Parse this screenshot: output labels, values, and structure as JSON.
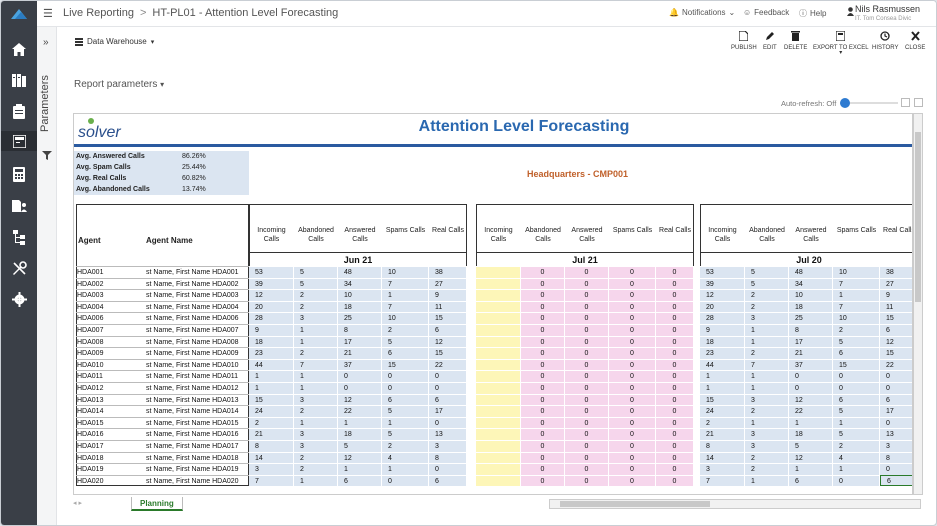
{
  "topbar": {
    "breadcrumb_root": "Live Reporting",
    "breadcrumb_page": "HT-PL01 - Attention Level Forecasting",
    "notifications": "Notifications",
    "feedback": "Feedback",
    "help": "Help",
    "user_name": "Nils Rasmussen",
    "user_sub": "IT. Tom Consea Divic"
  },
  "toolbar": {
    "datasource": "Data Warehouse",
    "publish": "PUBLISH",
    "edit": "EDIT",
    "delete": "DELETE",
    "export": "EXPORT TO EXCEL",
    "history": "HISTORY",
    "close": "CLOSE",
    "report_parameters": "Report parameters",
    "auto_refresh": "Auto-refresh: Off"
  },
  "params": {
    "label": "Parameters"
  },
  "report": {
    "logo": "solver",
    "title": "Attention Level Forecasting",
    "headquarters": "Headquarters - CMP001",
    "summary": [
      {
        "label": "Avg. Answered Calls",
        "value": "86.26%"
      },
      {
        "label": "Avg. Spam Calls",
        "value": "25.44%"
      },
      {
        "label": "Avg. Real Calls",
        "value": "60.82%"
      },
      {
        "label": "Avg. Abandoned Calls",
        "value": "13.74%"
      }
    ],
    "col_agent": "Agent",
    "col_agent_name": "Agent Name",
    "metric_headers": [
      "Incoming Calls",
      "Abandoned Calls",
      "Answered Calls",
      "Spams Calls",
      "Real Calls"
    ],
    "blocks": [
      {
        "date": "Jun 21",
        "kind": "data"
      },
      {
        "date": "Jul 21",
        "kind": "zero"
      },
      {
        "date": "Jul 20",
        "kind": "data"
      }
    ],
    "rows": [
      {
        "agent": "HDA001",
        "name": "st Name, First Name HDA001",
        "v": [
          "53",
          "5",
          "48",
          "10",
          "38"
        ]
      },
      {
        "agent": "HDA002",
        "name": "st Name, First Name HDA002",
        "v": [
          "39",
          "5",
          "34",
          "7",
          "27"
        ]
      },
      {
        "agent": "HDA003",
        "name": "st Name, First Name HDA003",
        "v": [
          "12",
          "2",
          "10",
          "1",
          "9"
        ]
      },
      {
        "agent": "HDA004",
        "name": "st Name, First Name HDA004",
        "v": [
          "20",
          "2",
          "18",
          "7",
          "11"
        ]
      },
      {
        "agent": "HDA006",
        "name": "st Name, First Name HDA006",
        "v": [
          "28",
          "3",
          "25",
          "10",
          "15"
        ]
      },
      {
        "agent": "HDA007",
        "name": "st Name, First Name HDA007",
        "v": [
          "9",
          "1",
          "8",
          "2",
          "6"
        ]
      },
      {
        "agent": "HDA008",
        "name": "st Name, First Name HDA008",
        "v": [
          "18",
          "1",
          "17",
          "5",
          "12"
        ]
      },
      {
        "agent": "HDA009",
        "name": "st Name, First Name HDA009",
        "v": [
          "23",
          "2",
          "21",
          "6",
          "15"
        ]
      },
      {
        "agent": "HDA010",
        "name": "st Name, First Name HDA010",
        "v": [
          "44",
          "7",
          "37",
          "15",
          "22"
        ]
      },
      {
        "agent": "HDA011",
        "name": "st Name, First Name HDA011",
        "v": [
          "1",
          "1",
          "0",
          "0",
          "0"
        ]
      },
      {
        "agent": "HDA012",
        "name": "st Name, First Name HDA012",
        "v": [
          "1",
          "1",
          "0",
          "0",
          "0"
        ]
      },
      {
        "agent": "HDA013",
        "name": "st Name, First Name HDA013",
        "v": [
          "15",
          "3",
          "12",
          "6",
          "6"
        ]
      },
      {
        "agent": "HDA014",
        "name": "st Name, First Name HDA014",
        "v": [
          "24",
          "2",
          "22",
          "5",
          "17"
        ]
      },
      {
        "agent": "HDA015",
        "name": "st Name, First Name HDA015",
        "v": [
          "2",
          "1",
          "1",
          "1",
          "0"
        ]
      },
      {
        "agent": "HDA016",
        "name": "st Name, First Name HDA016",
        "v": [
          "21",
          "3",
          "18",
          "5",
          "13"
        ]
      },
      {
        "agent": "HDA017",
        "name": "st Name, First Name HDA017",
        "v": [
          "8",
          "3",
          "5",
          "2",
          "3"
        ]
      },
      {
        "agent": "HDA018",
        "name": "st Name, First Name HDA018",
        "v": [
          "14",
          "2",
          "12",
          "4",
          "8"
        ]
      },
      {
        "agent": "HDA019",
        "name": "st Name, First Name HDA019",
        "v": [
          "3",
          "2",
          "1",
          "1",
          "0"
        ]
      },
      {
        "agent": "HDA020",
        "name": "st Name, First Name HDA020",
        "v": [
          "7",
          "1",
          "6",
          "0",
          "6"
        ]
      }
    ]
  },
  "sheet_tab": "Planning",
  "colors": {
    "rail": "#3a3f47",
    "title_blue": "#2a68b0",
    "hq_orange": "#c0602a",
    "cell_blue": "#dbe5f1",
    "cell_yellow": "#fdf6b8",
    "cell_pink": "#f6d6ec",
    "tab_green": "#2a7a2a"
  }
}
